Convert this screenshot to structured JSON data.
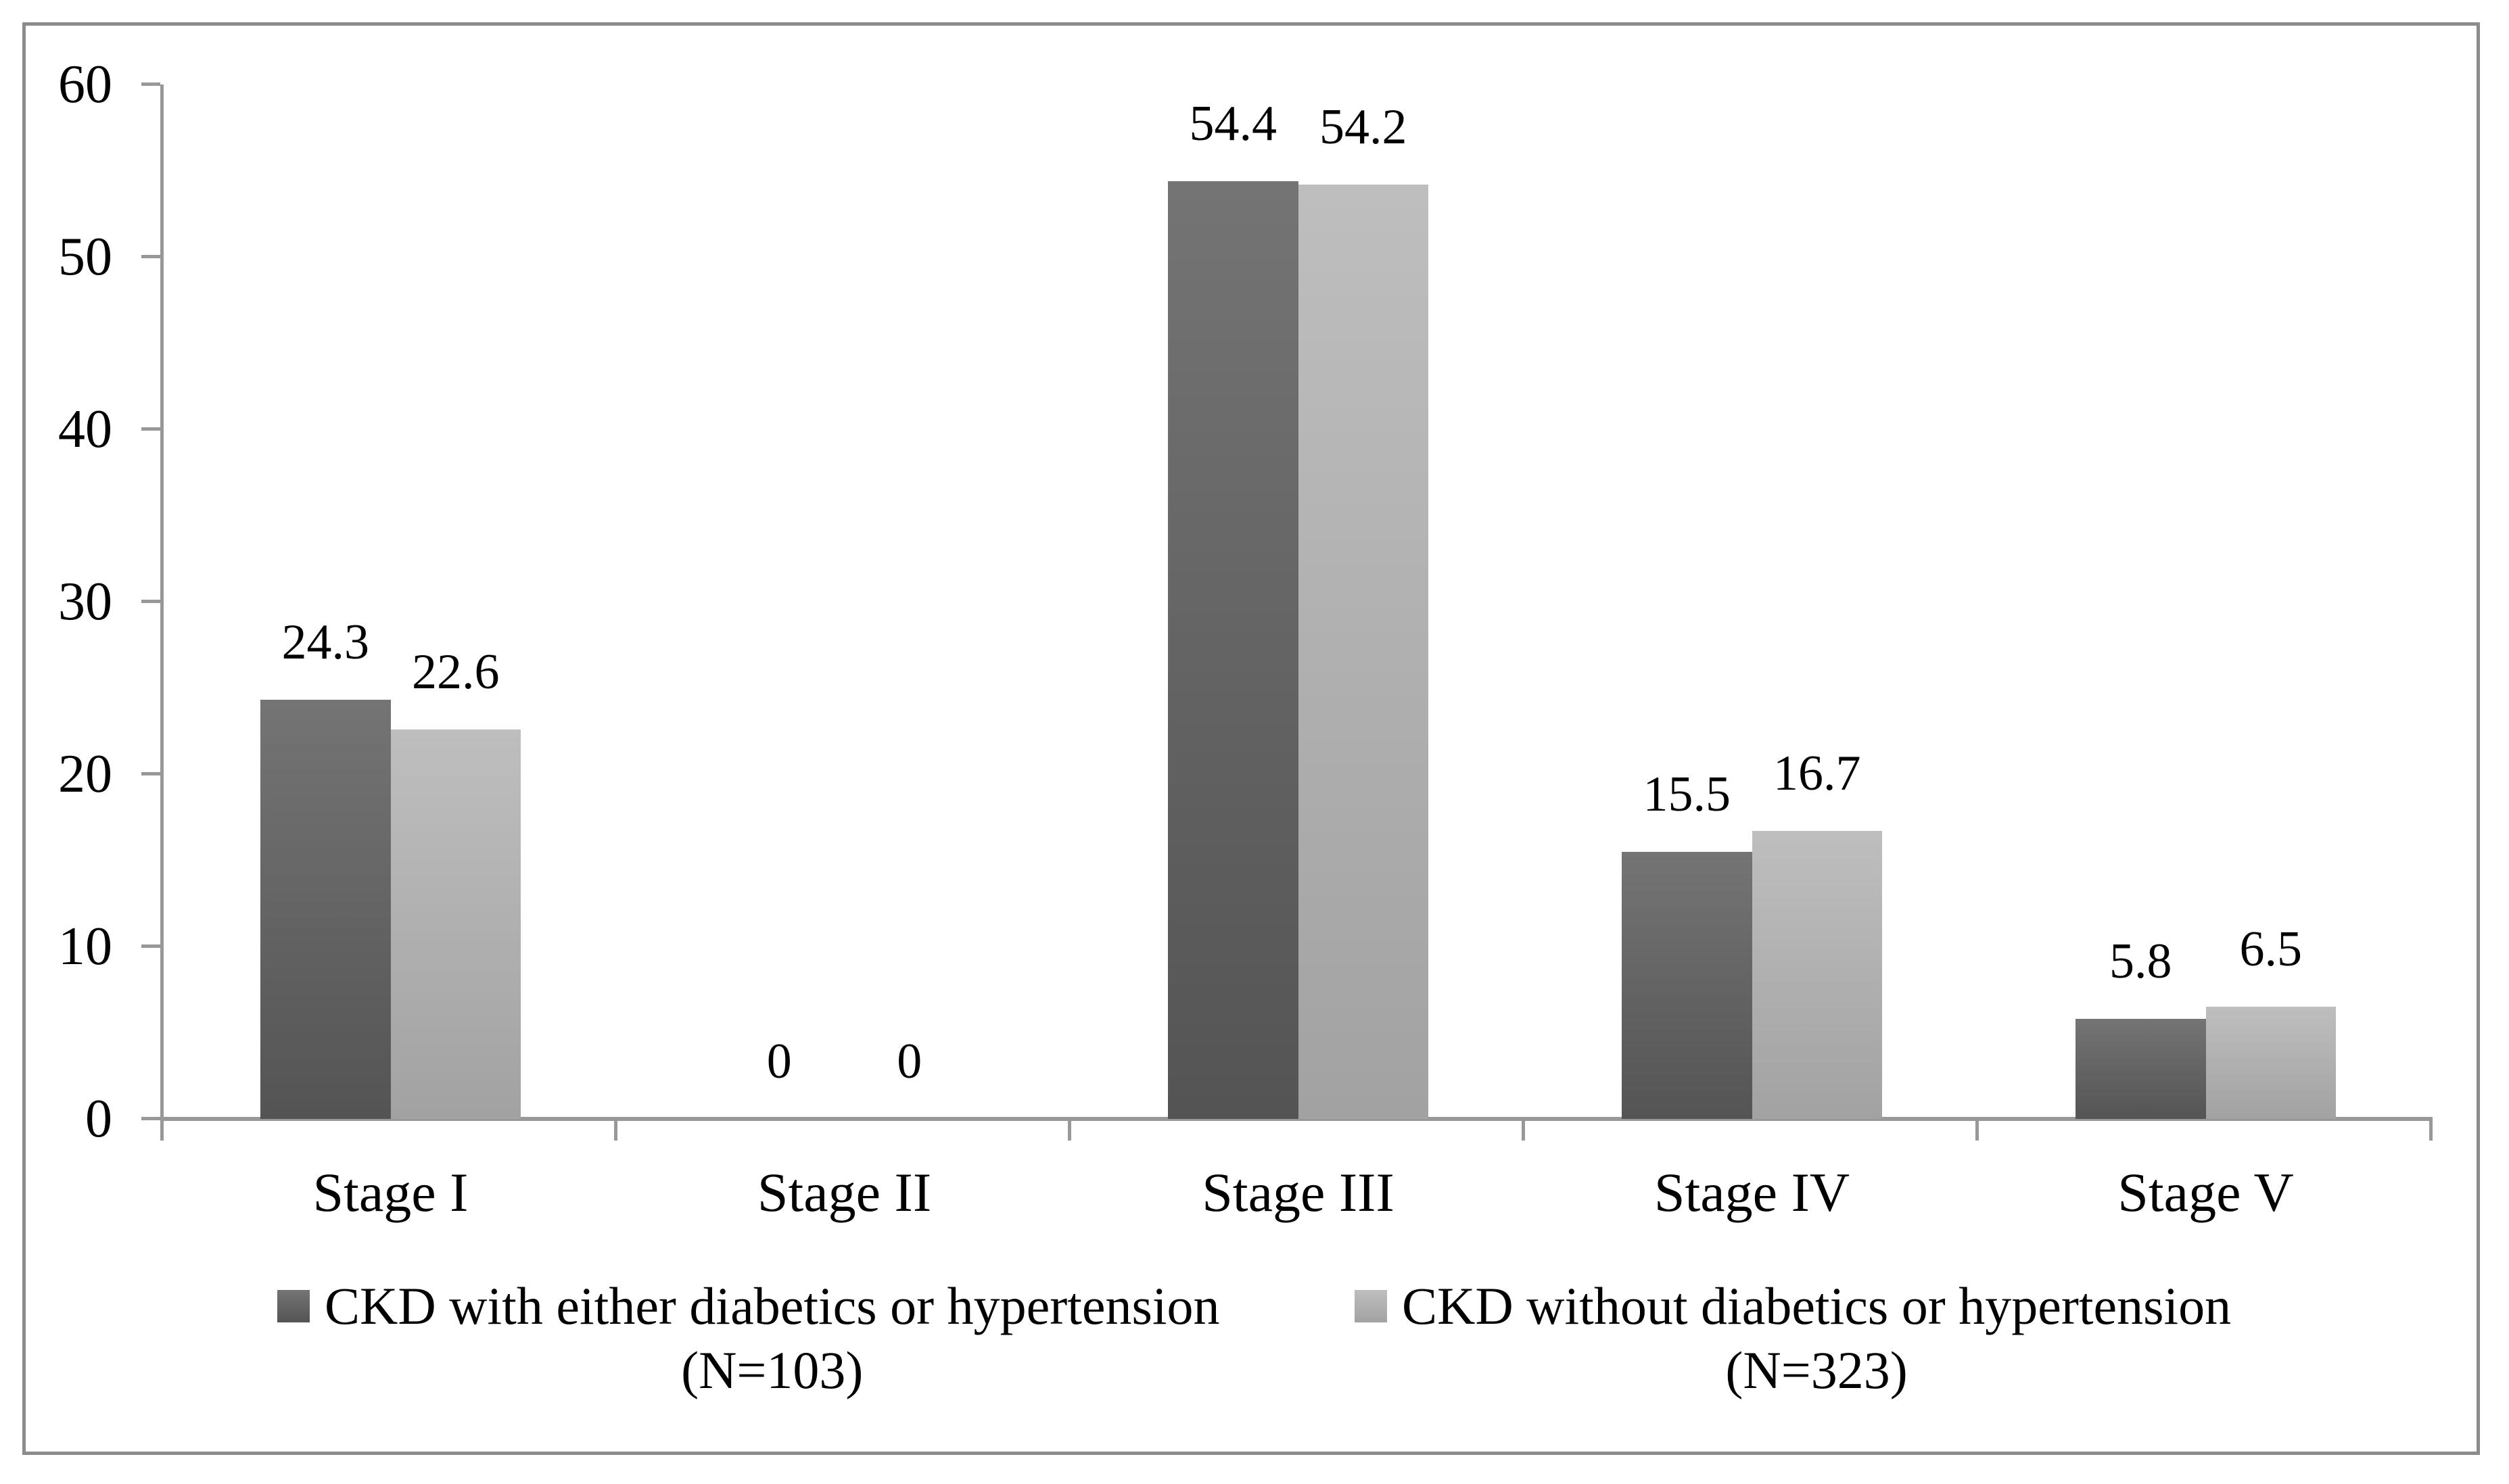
{
  "chart_data": {
    "type": "bar",
    "title": "",
    "xlabel": "",
    "ylabel": "",
    "grid": false,
    "legend_position": "bottom",
    "categories": [
      "Stage I",
      "Stage II",
      "Stage III",
      "Stage IV",
      "Stage V"
    ],
    "series": [
      {
        "name": "CKD with either diabetics or hypertension (N=103)",
        "legend_lines": [
          "CKD with either diabetics or hypertension",
          "(N=103)"
        ],
        "values": [
          24.3,
          0,
          54.4,
          15.5,
          5.8
        ],
        "data_labels": [
          "24.3",
          "0",
          "54.4",
          "15.5",
          "5.8"
        ],
        "color_top": "#747474",
        "color_bottom": "#545454"
      },
      {
        "name": "CKD without diabetics or hypertension (N=323)",
        "legend_lines": [
          "CKD without diabetics or hypertension",
          "(N=323)"
        ],
        "values": [
          22.6,
          0,
          54.2,
          16.7,
          6.5
        ],
        "data_labels": [
          "22.6",
          "0",
          "54.2",
          "16.7",
          "6.5"
        ],
        "color_top": "#bebebe",
        "color_bottom": "#a2a2a2"
      }
    ],
    "y_axis": {
      "min": 0,
      "max": 60,
      "step": 10,
      "tick_labels": [
        "0",
        "10",
        "20",
        "30",
        "40",
        "50",
        "60"
      ]
    },
    "colors": {
      "axis": "#989898",
      "frame_border": "#8c8c8c",
      "text": "#000000",
      "background": "#ffffff"
    }
  }
}
